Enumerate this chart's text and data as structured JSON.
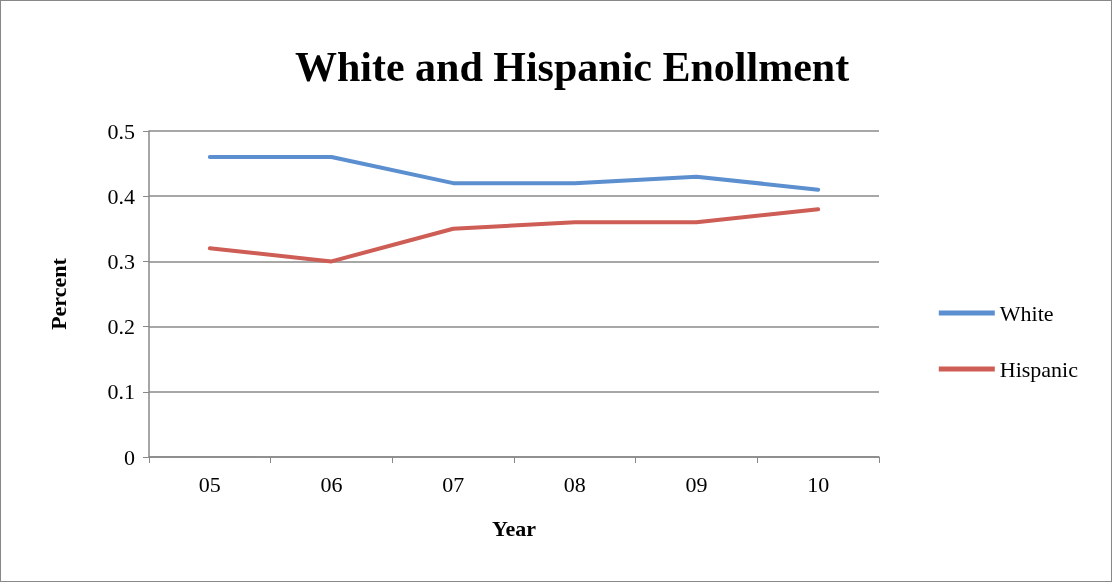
{
  "chart_data": {
    "type": "line",
    "title": "White and Hispanic Enollment",
    "xlabel": "Year",
    "ylabel": "Percent",
    "categories": [
      "05",
      "06",
      "07",
      "08",
      "09",
      "10"
    ],
    "series": [
      {
        "name": "White",
        "color": "#5b8fcf",
        "values": [
          0.46,
          0.46,
          0.42,
          0.42,
          0.43,
          0.41
        ]
      },
      {
        "name": "Hispanic",
        "color": "#cd5d55",
        "values": [
          0.32,
          0.3,
          0.35,
          0.36,
          0.36,
          0.38
        ]
      }
    ],
    "ylim": [
      0,
      0.5
    ],
    "yticks": [
      0,
      0.1,
      0.2,
      0.3,
      0.4,
      0.5
    ],
    "grid": "y",
    "legend": "right",
    "marker": "none",
    "line_style": "solid"
  }
}
